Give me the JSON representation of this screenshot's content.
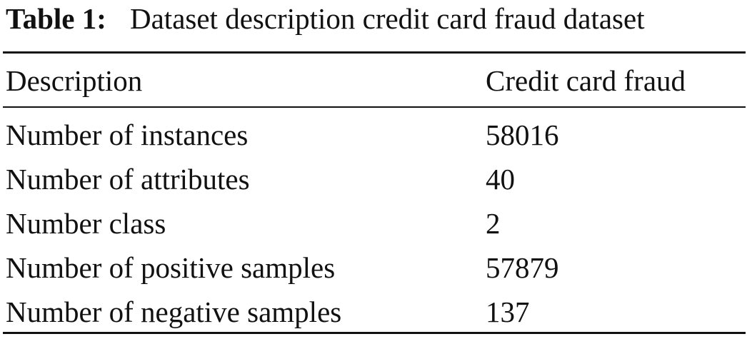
{
  "caption": {
    "label": "Table 1:",
    "text": "Dataset description credit card fraud dataset"
  },
  "table": {
    "header": [
      "Description",
      "Credit card fraud"
    ],
    "rows": [
      [
        "Number of instances",
        58016
      ],
      [
        "Number of attributes",
        40
      ],
      [
        "Number class",
        2
      ],
      [
        "Number of positive samples",
        57879
      ],
      [
        "Number of negative samples",
        137
      ]
    ]
  }
}
